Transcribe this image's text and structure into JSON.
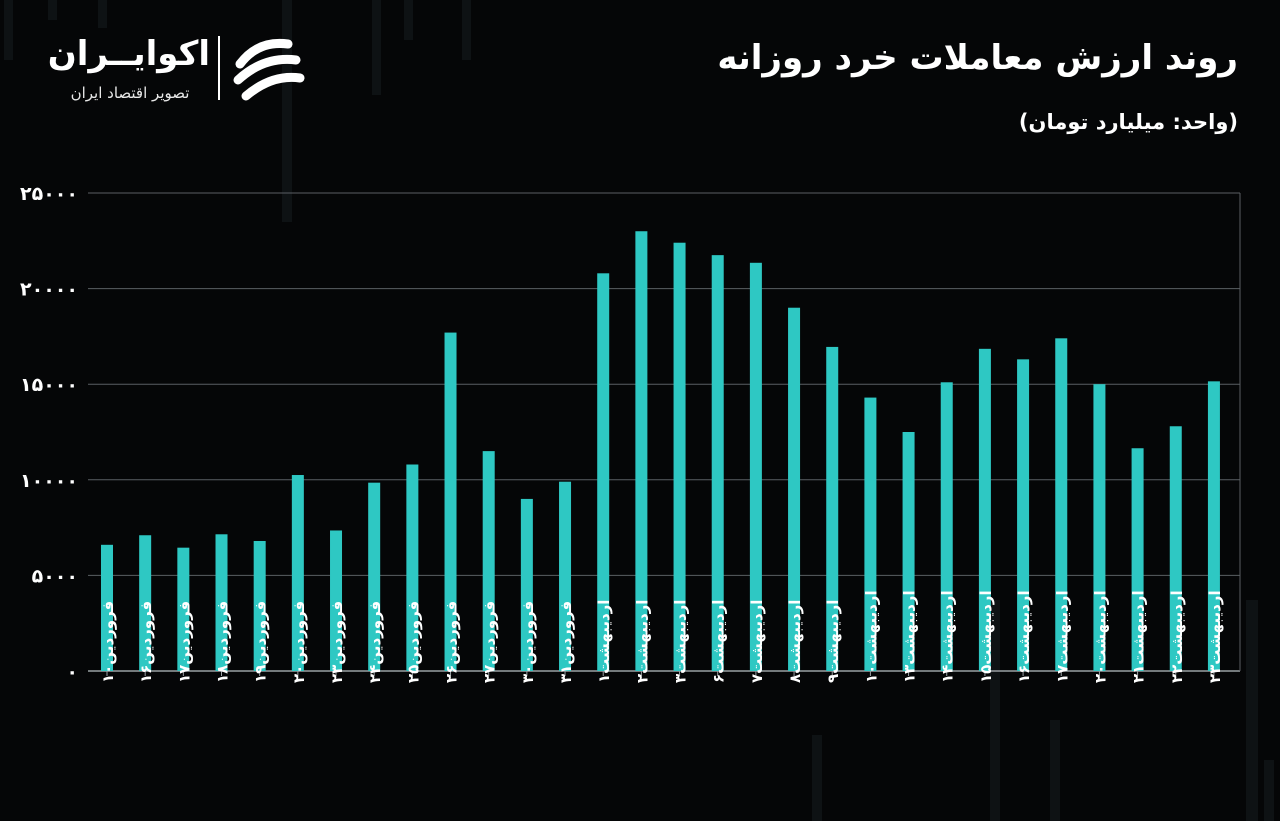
{
  "header": {
    "title": "روند ارزش معاملات خرد روزانه",
    "unit": "(واحد: میلیارد تومان)"
  },
  "logo": {
    "name": "اکوایــران",
    "tagline": "تصویر اقتصاد ایران",
    "icon": "ecoiran-swirl-icon"
  },
  "colors": {
    "background": "#050607",
    "bar": "#2ec8c3",
    "grid": "#5a5f63",
    "text": "#ffffff"
  },
  "chart_data": {
    "type": "bar",
    "title": "روند ارزش معاملات خرد روزانه",
    "ylabel": "",
    "xlabel": "",
    "ylim": [
      0,
      25000
    ],
    "yticks": [
      "۲۵۰۰۰",
      "۲۰۰۰۰",
      "۱۵۰۰۰",
      "۱۰۰۰۰",
      "۵۰۰۰",
      "۰"
    ],
    "ytick_values": [
      25000,
      20000,
      15000,
      10000,
      5000,
      0
    ],
    "grid": true,
    "categories": [
      "فروردین۱۰",
      "فروردین۱۶",
      "فروردین۱۷",
      "فروردین۱۸",
      "فروردین۱۹",
      "فروردین۲۰",
      "فروردین۲۳",
      "فروردین۲۴",
      "فروردین۲۵",
      "فروردین۲۶",
      "فروردین۲۷",
      "فروردین۳۰",
      "فروردین۳۱",
      "اردیبهشت۱",
      "اردیبهشت۲",
      "اردیبهشت۳",
      "اردیبهشت۶",
      "اردیبهشت۷",
      "اردیبهشت۸",
      "اردیبهشت۹",
      "اردیبهشت۱۰",
      "اردیبهشت۱۳",
      "اردیبهشت۱۴",
      "اردیبهشت۱۵",
      "اردیبهشت۱۶",
      "اردیبهشت۱۷",
      "اردیبهشت۲۰",
      "اردیبهشت۲۱",
      "اردیبهشت۲۲",
      "اردیبهشت۲۳"
    ],
    "values": [
      6600,
      7100,
      6450,
      7150,
      6800,
      10250,
      7350,
      9850,
      10800,
      17700,
      11500,
      9000,
      9900,
      20800,
      23000,
      22400,
      21750,
      21350,
      19000,
      16950,
      14300,
      12500,
      15100,
      16850,
      16300,
      17400,
      15000,
      11650,
      12800,
      15150
    ]
  }
}
